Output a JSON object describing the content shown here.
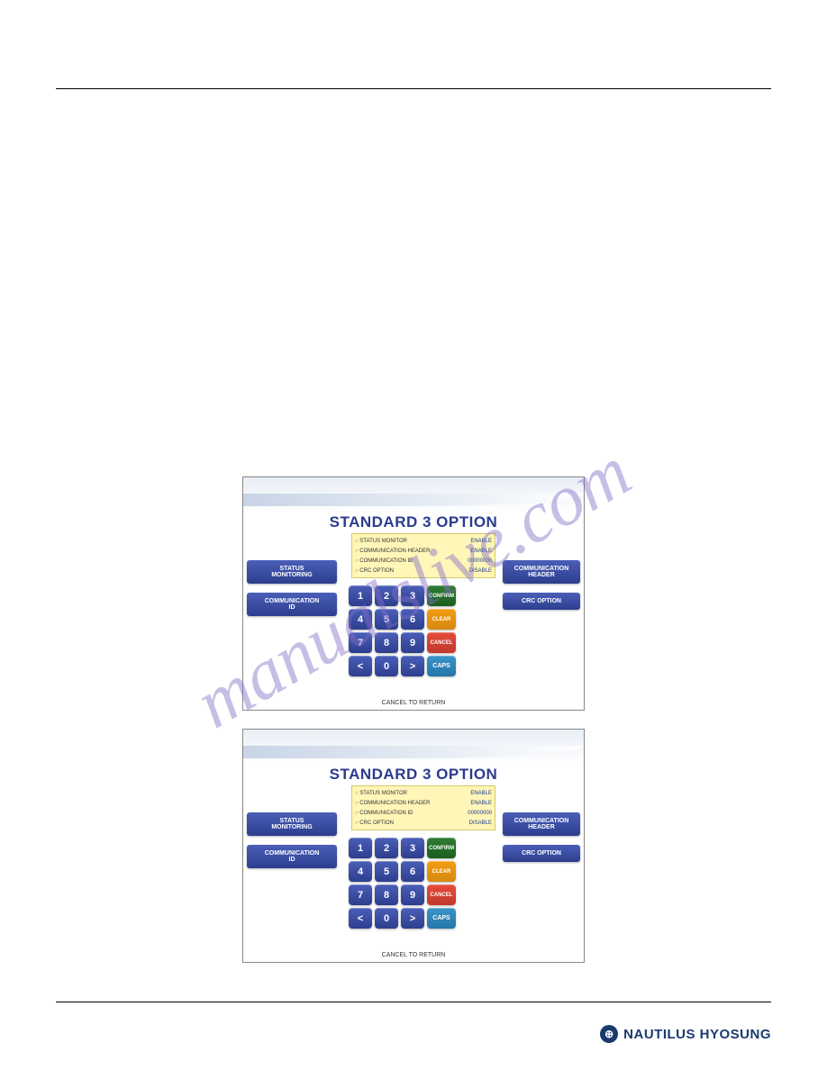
{
  "watermark_text": "manualslive.com",
  "footer": {
    "brand": "NAUTILUS HYOSUNG"
  },
  "atm": {
    "title": "STANDARD 3 OPTION",
    "cancel_to_return": "CANCEL TO RETURN",
    "status_rows": [
      {
        "label": "STATUS MONITOR",
        "value": "ENABLE"
      },
      {
        "label": "COMMUNICATION HEADER",
        "value": "ENABLE"
      },
      {
        "label": "COMMUNICATION ID",
        "value": "00000000"
      },
      {
        "label": "CRC OPTION",
        "value": "DISABLE"
      }
    ],
    "left_buttons": [
      {
        "label": "STATUS\nMONITORING"
      },
      {
        "label": "COMMUNICATION\nID"
      }
    ],
    "right_buttons": [
      {
        "label": "COMMUNICATION\nHEADER"
      },
      {
        "label": "CRC OPTION"
      }
    ],
    "keypad": {
      "rows": [
        [
          "1",
          "2",
          "3",
          "CONFIRM"
        ],
        [
          "4",
          "5",
          "6",
          "CLEAR"
        ],
        [
          "7",
          "8",
          "9",
          "CANCEL"
        ],
        [
          "<",
          "0",
          ">",
          "CAPS"
        ]
      ],
      "colors": {
        "num": "#2d3e8e",
        "confirm": "#1b5e20",
        "clear": "#d68910",
        "cancel": "#c0392b",
        "caps": "#2574a9"
      }
    }
  }
}
